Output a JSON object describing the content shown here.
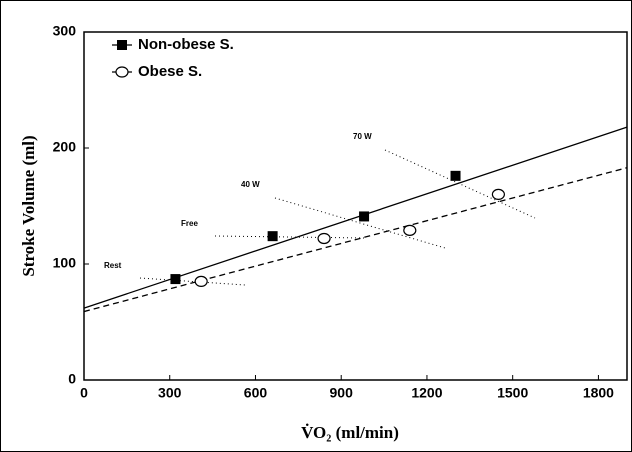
{
  "chart_data": {
    "type": "scatter",
    "xlabel": "V̇O₂ (ml/min)",
    "ylabel": "Stroke Volume (ml)",
    "xlim": [
      0,
      1900
    ],
    "xticks": [
      0,
      300,
      600,
      900,
      1200,
      1500,
      1800
    ],
    "ylim": [
      0,
      300
    ],
    "yticks": [
      0,
      100,
      200,
      300
    ],
    "legend": "upper left",
    "series": [
      {
        "name": "Non-obese S.",
        "marker": "square",
        "color": "#000000",
        "x": [
          320,
          660,
          980,
          1300
        ],
        "values": [
          87,
          124,
          141,
          176
        ]
      },
      {
        "name": "Obese S.",
        "marker": "circle",
        "color": "#000000",
        "x": [
          410,
          840,
          1140,
          1450
        ],
        "values": [
          85,
          122,
          129,
          160
        ]
      }
    ],
    "fit_lines": [
      {
        "style": "solid",
        "x": [
          0,
          1900
        ],
        "values": [
          62,
          218
        ]
      },
      {
        "style": "dashed",
        "x": [
          0,
          1900
        ],
        "values": [
          59,
          183
        ]
      }
    ],
    "annotations": [
      "Rest",
      "Free",
      "40 W",
      "70 W"
    ]
  }
}
